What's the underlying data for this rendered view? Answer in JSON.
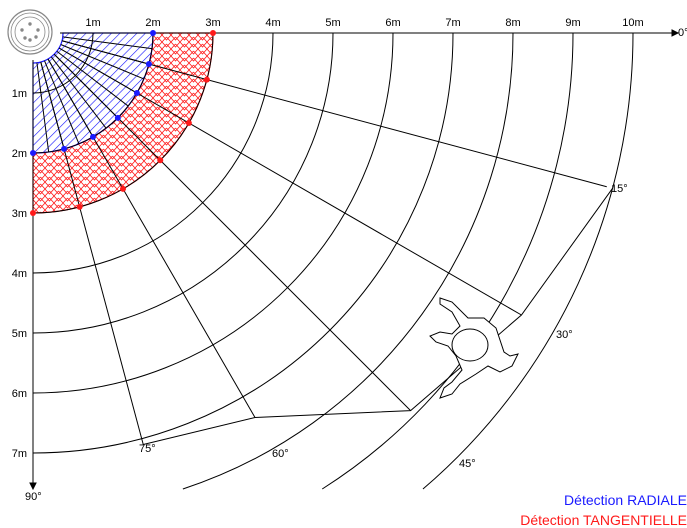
{
  "diagram": {
    "x_distance_labels": [
      "1m",
      "2m",
      "3m",
      "4m",
      "5m",
      "6m",
      "7m",
      "8m",
      "9m",
      "10m"
    ],
    "y_distance_labels": [
      "1m",
      "2m",
      "3m",
      "4m",
      "5m",
      "6m",
      "7m"
    ],
    "angle_labels": [
      "0°",
      "15°",
      "30°",
      "45°",
      "60°",
      "75°",
      "90°"
    ],
    "rings_m": [
      1,
      2,
      3,
      4,
      5,
      6,
      7,
      8,
      9,
      10
    ],
    "radial_zone_m": 2,
    "tangential_zone_m": 3,
    "colors": {
      "radial": "#1a1aff",
      "tangential": "#ff1a1a",
      "lines": "#000000"
    }
  },
  "legend": {
    "radial": "Détection RADIALE",
    "tangential": "Détection TANGENTIELLE"
  }
}
